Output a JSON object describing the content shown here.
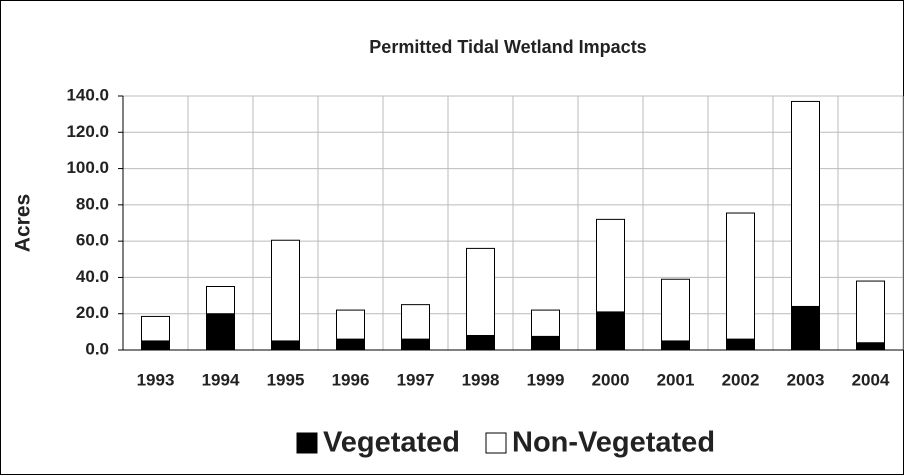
{
  "chart_data": {
    "type": "stacked_bar",
    "title": "Permitted Tidal Wetland Impacts",
    "y_label": "Acres",
    "categories": [
      "1993",
      "1994",
      "1995",
      "1996",
      "1997",
      "1998",
      "1999",
      "2000",
      "2001",
      "2002",
      "2003",
      "2004"
    ],
    "series": [
      {
        "name": "Vegetated",
        "color": "#000000",
        "values": [
          5,
          20,
          5,
          6,
          6,
          8,
          7.5,
          21,
          5,
          6,
          24,
          4
        ]
      },
      {
        "name": "Non-Vegetated",
        "color": "#ffffff",
        "values": [
          13.5,
          15,
          55.5,
          16,
          19,
          48,
          14.5,
          51,
          34,
          69.5,
          113,
          34
        ]
      }
    ],
    "ylim": [
      0,
      140
    ],
    "yticks": [
      {
        "value": 0,
        "label": "0.0"
      },
      {
        "value": 20,
        "label": "20.0"
      },
      {
        "value": 40,
        "label": "40.0"
      },
      {
        "value": 60,
        "label": "60.0"
      },
      {
        "value": 80,
        "label": "80.0"
      },
      {
        "value": 100,
        "label": "100.0"
      },
      {
        "value": 120,
        "label": "120.0"
      },
      {
        "value": 140,
        "label": "140.0"
      }
    ],
    "grid": true,
    "legend": "bottom"
  }
}
